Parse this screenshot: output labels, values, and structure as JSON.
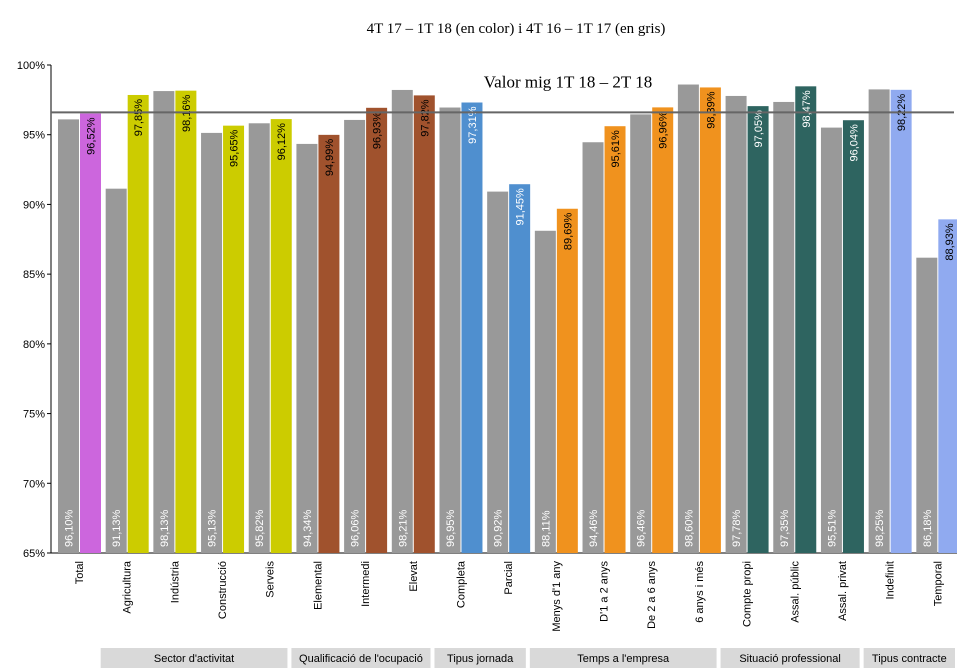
{
  "chart_data": {
    "type": "bar",
    "title": "4T 17 – 1T 18 (en color) i 4T 16 – 1T 17 (en gris)",
    "ylim": [
      65,
      100
    ],
    "yticks": [
      "65%",
      "70%",
      "75%",
      "80%",
      "85%",
      "90%",
      "95%",
      "100%"
    ],
    "grid": false,
    "categories": [
      "Total",
      "Agricultura",
      "Indústria",
      "Construcció",
      "Serveis",
      "Elemental",
      "Intermedi",
      "Elevat",
      "Completa",
      "Parcial",
      "Menys d'1 any",
      "D'1 a 2 anys",
      "De 2 a 6 anys",
      "6 anys i més",
      "Compte propi",
      "Assal. públic",
      "Assal. privat",
      "Indefinit",
      "Temporal"
    ],
    "series": [
      {
        "values": [
          96.1,
          91.13,
          98.13,
          95.13,
          95.82,
          94.34,
          96.06,
          98.21,
          96.95,
          90.92,
          88.11,
          94.46,
          96.46,
          98.6,
          97.78,
          97.35,
          95.51,
          98.25,
          86.18
        ],
        "labels": [
          "96,10%",
          "91,13%",
          "98,13%",
          "95,13%",
          "95,82%",
          "94,34%",
          "96,06%",
          "98,21%",
          "96,95%",
          "90,92%",
          "88,11%",
          "94,46%",
          "96,46%",
          "98,60%",
          "97,78%",
          "97,35%",
          "95,51%",
          "98,25%",
          "86,18%"
        ],
        "color": "#999999"
      },
      {
        "values": [
          96.52,
          97.85,
          98.16,
          95.65,
          96.12,
          94.99,
          96.93,
          97.82,
          97.31,
          91.45,
          89.69,
          95.61,
          96.96,
          98.39,
          97.05,
          98.47,
          96.04,
          98.22,
          88.93
        ],
        "labels": [
          "96,52%",
          "97,85%",
          "98,16%",
          "95,65%",
          "96,12%",
          "94,99%",
          "96,93%",
          "97,82%",
          "97,31%",
          "91,45%",
          "89,69%",
          "95,61%",
          "96,96%",
          "98,39%",
          "97,05%",
          "98,47%",
          "96,04%",
          "98,22%",
          "88,93%"
        ],
        "colors": [
          "#cc66dd",
          "#cccc00",
          "#cccc00",
          "#cccc00",
          "#cccc00",
          "#a0522d",
          "#a0522d",
          "#a0522d",
          "#4f8fcf",
          "#4f8fcf",
          "#f0921e",
          "#f0921e",
          "#f0921e",
          "#f0921e",
          "#2e6460",
          "#2e6460",
          "#2e6460",
          "#90aaf0",
          "#90aaf0"
        ]
      }
    ],
    "reference_line": {
      "value": 96.6,
      "label": "Valor mig 1T 18 – 2T 18",
      "color": "#666666"
    },
    "groups": [
      {
        "label": "Sector d'activitat",
        "from": 1,
        "to": 4
      },
      {
        "label": "Qualificació de l'ocupació",
        "from": 5,
        "to": 7
      },
      {
        "label": "Tipus jornada",
        "from": 8,
        "to": 9
      },
      {
        "label": "Temps a l'empresa",
        "from": 10,
        "to": 13
      },
      {
        "label": "Situació professional",
        "from": 14,
        "to": 16
      },
      {
        "label": "Tipus contracte",
        "from": 17,
        "to": 18
      }
    ]
  }
}
